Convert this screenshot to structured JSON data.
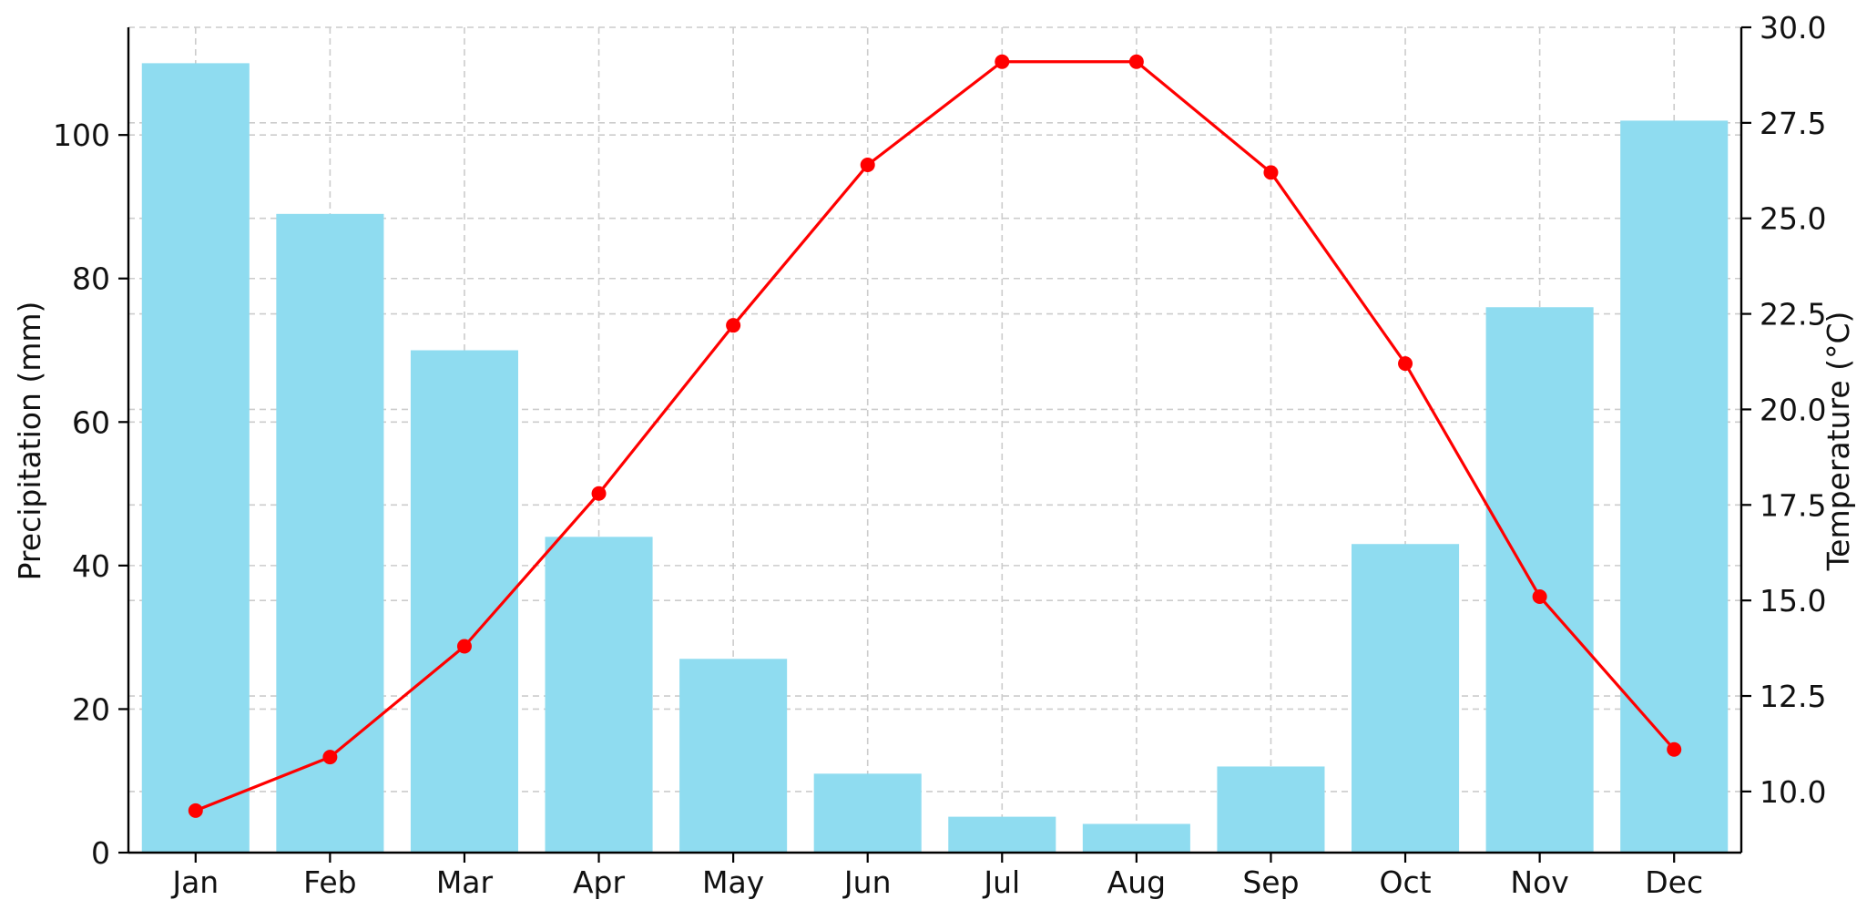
{
  "chart_data": {
    "type": "bar",
    "categories": [
      "Jan",
      "Feb",
      "Mar",
      "Apr",
      "May",
      "Jun",
      "Jul",
      "Aug",
      "Sep",
      "Oct",
      "Nov",
      "Dec"
    ],
    "series": [
      {
        "type": "bar",
        "axis": "left",
        "color": "#8fdcf0",
        "values": [
          110,
          89,
          70,
          44,
          27,
          11,
          5,
          4,
          12,
          43,
          76,
          102
        ]
      },
      {
        "type": "line",
        "axis": "right",
        "color": "#ff0000",
        "values": [
          9.5,
          10.9,
          13.8,
          17.8,
          22.2,
          26.4,
          29.1,
          29.1,
          26.2,
          21.2,
          15.1,
          11.1
        ]
      }
    ],
    "xlabel": "",
    "ylabel": "Precipitation (mm)",
    "y2label": "Temperature (°C)",
    "ylim": [
      0,
      115
    ],
    "y2lim": [
      8.4,
      30.0
    ],
    "yticks": [
      0,
      20,
      40,
      60,
      80,
      100
    ],
    "y2ticks": [
      10.0,
      12.5,
      15.0,
      17.5,
      20.0,
      22.5,
      25.0,
      27.5,
      30.0
    ],
    "grid": true,
    "grid_color": "#cccccc",
    "legend": "none"
  }
}
